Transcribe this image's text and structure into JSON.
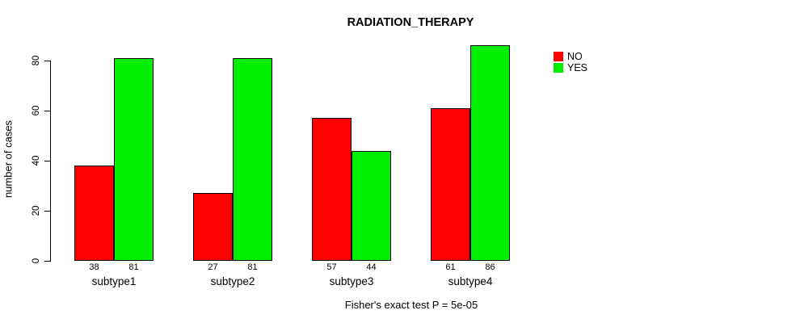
{
  "title": "RADIATION_THERAPY",
  "caption": "Fisher's exact test P = 5e-05",
  "chart_data": {
    "type": "bar",
    "title": "RADIATION_THERAPY",
    "subtitle": "Fisher's exact test P = 5e-05",
    "categories": [
      "subtype1",
      "subtype2",
      "subtype3",
      "subtype4"
    ],
    "series": [
      {
        "name": "NO",
        "color": "#ff0000",
        "values": [
          38,
          27,
          57,
          61
        ]
      },
      {
        "name": "YES",
        "color": "#00ee00",
        "values": [
          81,
          81,
          44,
          86
        ]
      }
    ],
    "xlabel": "",
    "ylabel": "number of cases",
    "yticks": [
      0,
      20,
      40,
      60,
      80
    ],
    "ylim": [
      0,
      86
    ],
    "grid": false,
    "bar_value_labels": true,
    "legend_position": "top-right-outside"
  }
}
